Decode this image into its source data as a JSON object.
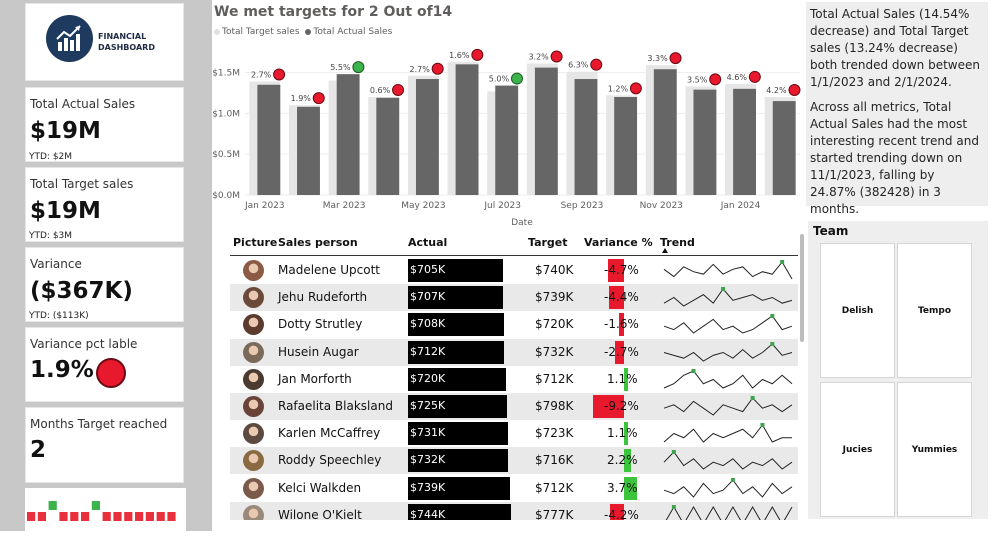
{
  "logo": {
    "line1": "FINANCIAL",
    "line2": "DASHBOARD",
    "icon": "bar-chart-arrow-icon"
  },
  "kpis": {
    "actual": {
      "title": "Total Actual Sales",
      "value": "$19M",
      "ytd": "YTD: $2M"
    },
    "target": {
      "title": "Total Target sales",
      "value": "$19M",
      "ytd": "YTD: $3M"
    },
    "variance": {
      "title": "Variance",
      "value": "($367K)",
      "ytd": "YTD: ($113K)"
    },
    "variance_pct": {
      "title": "Variance pct lable",
      "value": "1.9%",
      "status_color": "#e8192c"
    },
    "months": {
      "title": "Months Target reached",
      "value": "2"
    }
  },
  "months_strip": {
    "met": [
      false,
      false,
      true,
      false,
      false,
      false,
      true,
      false,
      false,
      false,
      false,
      false,
      false,
      false
    ],
    "met_color": "#3cb44b",
    "miss_color": "#e8313d"
  },
  "chart_data": {
    "type": "bar",
    "title": "We met targets for 2 Out of14",
    "xlabel": "Date",
    "ylabel": "",
    "ylim": [
      0,
      1.8
    ],
    "y_ticks": [
      "$0.0M",
      "$0.5M",
      "$1.0M",
      "$1.5M"
    ],
    "x_tick_labels": [
      "Jan 2023",
      "Mar 2023",
      "May 2023",
      "Jul 2023",
      "Sep 2023",
      "Nov 2023",
      "Jan 2024"
    ],
    "categories": [
      "2023-01",
      "2023-02",
      "2023-03",
      "2023-04",
      "2023-05",
      "2023-06",
      "2023-07",
      "2023-08",
      "2023-09",
      "2023-10",
      "2023-11",
      "2023-12",
      "2024-01",
      "2024-02"
    ],
    "series": [
      {
        "name": "Total Target sales",
        "color": "#e6e6e6",
        "values": [
          1.39,
          1.1,
          1.4,
          1.2,
          1.46,
          1.63,
          1.27,
          1.61,
          1.51,
          1.22,
          1.59,
          1.33,
          1.36,
          1.2
        ]
      },
      {
        "name": "Total Actual Sales",
        "color": "#666666",
        "values": [
          1.35,
          1.08,
          1.48,
          1.19,
          1.42,
          1.6,
          1.34,
          1.56,
          1.42,
          1.2,
          1.54,
          1.29,
          1.3,
          1.15
        ]
      }
    ],
    "data_labels": [
      "2.7%",
      "1.9%",
      "5.5%",
      "0.6%",
      "2.7%",
      "1.6%",
      "5.0%",
      "3.2%",
      "6.3%",
      "1.2%",
      "3.3%",
      "3.5%",
      "4.6%",
      "4.2%"
    ],
    "target_met": [
      false,
      false,
      true,
      false,
      false,
      false,
      true,
      false,
      false,
      false,
      false,
      false,
      false,
      false
    ],
    "grid": true,
    "legend": "top-left"
  },
  "narrative": {
    "p1": "Total Actual Sales (14.54% decrease) and Total Target sales (13.24% decrease) both trended down between 1/1/2023 and 2/1/2024.",
    "p2": "Across all metrics, Total Actual Sales had the most interesting recent trend and started trending down on 11/1/2023, falling by 24.87% (382428) in 3 months."
  },
  "team": {
    "title": "Team",
    "options": [
      "Delish",
      "Tempo",
      "Jucies",
      "Yummies"
    ]
  },
  "table": {
    "headers": {
      "picture": "Picture",
      "person": "Sales person",
      "actual": "Actual",
      "target": "Target",
      "variance": "Variance %",
      "trend": "Trend"
    },
    "rows": [
      {
        "name": "Madelene Upcott",
        "actual": "$705K",
        "actual_val": 705,
        "target": "$740K",
        "variance": "-4.7%",
        "var_val": -4.7,
        "avatar": "#8a5a44",
        "spark": [
          5,
          2,
          6,
          4,
          3,
          7,
          3,
          5,
          6,
          2,
          4,
          3,
          8,
          1
        ]
      },
      {
        "name": "Jehu Rudeforth",
        "actual": "$707K",
        "actual_val": 707,
        "target": "$739K",
        "variance": "-4.4%",
        "var_val": -4.4,
        "avatar": "#6b4a3a",
        "spark": [
          3,
          5,
          2,
          4,
          6,
          3,
          8,
          4,
          5,
          6,
          4,
          5,
          3,
          4
        ]
      },
      {
        "name": "Dotty Strutley",
        "actual": "$708K",
        "actual_val": 708,
        "target": "$720K",
        "variance": "-1.6%",
        "var_val": -1.6,
        "avatar": "#5a3b2e",
        "spark": [
          4,
          3,
          5,
          2,
          4,
          6,
          3,
          4,
          2,
          3,
          5,
          7,
          3,
          4
        ]
      },
      {
        "name": "Husein Augar",
        "actual": "$712K",
        "actual_val": 712,
        "target": "$732K",
        "variance": "-2.7%",
        "var_val": -2.7,
        "avatar": "#7a6a5a",
        "spark": [
          5,
          4,
          3,
          5,
          2,
          4,
          5,
          3,
          6,
          3,
          5,
          8,
          4,
          5
        ]
      },
      {
        "name": "Jan Morforth",
        "actual": "$720K",
        "actual_val": 720,
        "target": "$712K",
        "variance": "1.1%",
        "var_val": 1.1,
        "avatar": "#4a3a30",
        "spark": [
          3,
          4,
          6,
          7,
          4,
          5,
          3,
          4,
          6,
          3,
          5,
          4,
          6,
          4
        ]
      },
      {
        "name": "Rafaelita Blaksland",
        "actual": "$725K",
        "actual_val": 725,
        "target": "$798K",
        "variance": "-9.2%",
        "var_val": -9.2,
        "avatar": "#6a4438",
        "spark": [
          4,
          5,
          3,
          6,
          4,
          2,
          5,
          4,
          3,
          7,
          4,
          5,
          3,
          5
        ]
      },
      {
        "name": "Karlen McCaffrey",
        "actual": "$731K",
        "actual_val": 731,
        "target": "$723K",
        "variance": "1.1%",
        "var_val": 1.1,
        "avatar": "#5c4a3e",
        "spark": [
          3,
          5,
          4,
          6,
          3,
          5,
          4,
          5,
          6,
          4,
          7,
          3,
          4,
          4
        ]
      },
      {
        "name": "Roddy Speechley",
        "actual": "$732K",
        "actual_val": 732,
        "target": "$716K",
        "variance": "2.2%",
        "var_val": 2.2,
        "avatar": "#8a6a40",
        "spark": [
          5,
          8,
          4,
          6,
          3,
          5,
          4,
          6,
          3,
          5,
          4,
          6,
          3,
          5
        ]
      },
      {
        "name": "Kelci Walkden",
        "actual": "$739K",
        "actual_val": 739,
        "target": "$712K",
        "variance": "3.7%",
        "var_val": 3.7,
        "avatar": "#7a5a48",
        "spark": [
          4,
          3,
          5,
          2,
          6,
          3,
          4,
          7,
          3,
          5,
          2,
          6,
          3,
          5
        ]
      },
      {
        "name": "Wilone O'Kielt",
        "actual": "$744K",
        "actual_val": 744,
        "target": "$777K",
        "variance": "-4.2%",
        "var_val": -4.2,
        "avatar": "#9a8a7a",
        "spark": [
          4,
          5,
          4,
          5,
          4,
          5,
          4,
          5,
          4,
          5,
          4,
          5,
          4,
          5
        ]
      }
    ]
  }
}
